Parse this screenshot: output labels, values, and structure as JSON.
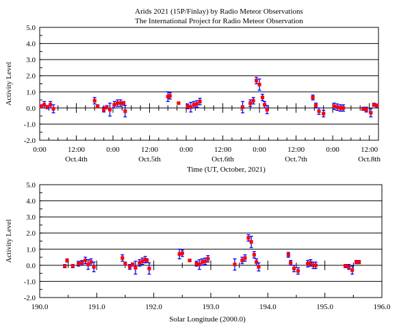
{
  "header": {
    "title_line1": "Arids 2021 (15P/Finlay) by Radio  Meteor Observations",
    "title_line2": "The International Project for Radio  Meteor Observation"
  },
  "colors": {
    "marker": "#ff0000",
    "errorbar": "#0000ff",
    "axis": "#000000"
  },
  "chart_data": [
    {
      "type": "scatter",
      "ylabel": "Activity Level",
      "xlabel": "Time (UT, October, 2021)",
      "grid": "horizontal major lines at integer y values",
      "xlim": [
        0,
        111
      ],
      "ylim": [
        -2,
        5
      ],
      "yticks": [
        -2,
        -1,
        0,
        1,
        2,
        3,
        4,
        5
      ],
      "ytick_labels": [
        "-2.0",
        "-1.0",
        "0.0",
        "1.0",
        "2.0",
        "3.0",
        "4.0",
        "5.0"
      ],
      "xtick_positions": [
        0,
        12,
        24,
        36,
        48,
        60,
        72,
        84,
        96,
        108
      ],
      "xtick_labels": [
        "0:00",
        "12:00",
        "0:00",
        "12:00",
        "0:00",
        "12:00",
        "0:00",
        "12:00",
        "0:00",
        "12:00"
      ],
      "day_labels": [
        {
          "x": 12,
          "text": "Oct.4th"
        },
        {
          "x": 36,
          "text": "Oct.5th"
        },
        {
          "x": 60,
          "text": "Oct.6th"
        },
        {
          "x": 84,
          "text": "Oct.7th"
        },
        {
          "x": 108,
          "text": "Oct.8th"
        }
      ],
      "points": [
        {
          "x": 0.5,
          "y": 0.1,
          "err": 0.1
        },
        {
          "x": 1.5,
          "y": 0.2,
          "err": 0.2
        },
        {
          "x": 2.5,
          "y": 0.05,
          "err": 0.1
        },
        {
          "x": 3.5,
          "y": 0.2,
          "err": 0.2
        },
        {
          "x": 4.5,
          "y": -0.05,
          "err": 0.25
        },
        {
          "x": 18,
          "y": 0.45,
          "err": 0.2
        },
        {
          "x": 19,
          "y": 0.1,
          "err": 0.1
        },
        {
          "x": 21,
          "y": -0.1,
          "err": 0.15
        },
        {
          "x": 22,
          "y": 0.05,
          "err": 0.1
        },
        {
          "x": 23,
          "y": -0.1,
          "err": 0.4
        },
        {
          "x": 24.5,
          "y": 0.2,
          "err": 0.2
        },
        {
          "x": 25.5,
          "y": 0.3,
          "err": 0.2
        },
        {
          "x": 26.5,
          "y": 0.3,
          "err": 0.2
        },
        {
          "x": 27.5,
          "y": 0.3,
          "err": 0.1
        },
        {
          "x": 28,
          "y": -0.2,
          "err": 0.35
        },
        {
          "x": 42,
          "y": 0.7,
          "err": 0.3
        },
        {
          "x": 42.7,
          "y": 0.75,
          "err": 0.2
        },
        {
          "x": 45.5,
          "y": 0.3,
          "err": 0.05
        },
        {
          "x": 48.5,
          "y": 0.1,
          "err": 0.15
        },
        {
          "x": 49.5,
          "y": 0.05,
          "err": 0.3
        },
        {
          "x": 50.5,
          "y": 0.2,
          "err": 0.2
        },
        {
          "x": 51.5,
          "y": 0.25,
          "err": 0.2
        },
        {
          "x": 52.5,
          "y": 0.4,
          "err": 0.2
        },
        {
          "x": 66.5,
          "y": 0.05,
          "err": 0.35
        },
        {
          "x": 69,
          "y": 0.3,
          "err": 0.2
        },
        {
          "x": 70,
          "y": 0.45,
          "err": 0.2
        },
        {
          "x": 71,
          "y": 1.7,
          "err": 0.2
        },
        {
          "x": 72,
          "y": 1.45,
          "err": 0.35
        },
        {
          "x": 73,
          "y": 0.65,
          "err": 0.2
        },
        {
          "x": 73.7,
          "y": 0.2,
          "err": 0.2
        },
        {
          "x": 74.5,
          "y": -0.1,
          "err": 0.25
        },
        {
          "x": 89.5,
          "y": 0.65,
          "err": 0.15
        },
        {
          "x": 90.5,
          "y": 0.15,
          "err": 0.15
        },
        {
          "x": 91.5,
          "y": -0.2,
          "err": 0.2
        },
        {
          "x": 93,
          "y": -0.35,
          "err": 0.2
        },
        {
          "x": 96.5,
          "y": 0.1,
          "err": 0.2
        },
        {
          "x": 97.5,
          "y": 0.05,
          "err": 0.2
        },
        {
          "x": 98.5,
          "y": 0.0,
          "err": 0.2
        },
        {
          "x": 99.5,
          "y": 0.0,
          "err": 0.2
        },
        {
          "x": 106,
          "y": -0.05,
          "err": 0.1
        },
        {
          "x": 107,
          "y": -0.1,
          "err": 0.15
        },
        {
          "x": 108.5,
          "y": -0.3,
          "err": 0.25
        },
        {
          "x": 109.5,
          "y": 0.2,
          "err": 0.1
        },
        {
          "x": 110.5,
          "y": 0.15,
          "err": 0.1
        }
      ]
    },
    {
      "type": "scatter",
      "ylabel": "Activity Level",
      "xlabel": "Solar Longitude (2000.0)",
      "grid": "horizontal major lines at integer y values",
      "xlim": [
        190.0,
        196.0
      ],
      "ylim": [
        -2,
        5
      ],
      "yticks": [
        -2,
        -1,
        0,
        1,
        2,
        3,
        4,
        5
      ],
      "ytick_labels": [
        "-2.0",
        "-1.0",
        "0.0",
        "1.0",
        "2.0",
        "3.0",
        "4.0",
        "5.0"
      ],
      "xticks": [
        190,
        191,
        192,
        193,
        194,
        195,
        196
      ],
      "xtick_labels": [
        "190.0",
        "191.0",
        "192.0",
        "193.0",
        "194.0",
        "195.0",
        "196.0"
      ],
      "points": [
        {
          "x": 190.44,
          "y": -0.05,
          "err": 0.1
        },
        {
          "x": 190.48,
          "y": 0.3,
          "err": 0.1
        },
        {
          "x": 190.58,
          "y": -0.05,
          "err": 0.1
        },
        {
          "x": 190.68,
          "y": 0.1,
          "err": 0.15
        },
        {
          "x": 190.74,
          "y": 0.15,
          "err": 0.15
        },
        {
          "x": 190.8,
          "y": 0.3,
          "err": 0.2
        },
        {
          "x": 190.85,
          "y": 0.05,
          "err": 0.3
        },
        {
          "x": 190.9,
          "y": 0.2,
          "err": 0.2
        },
        {
          "x": 190.95,
          "y": -0.1,
          "err": 0.3
        },
        {
          "x": 191.45,
          "y": 0.45,
          "err": 0.2
        },
        {
          "x": 191.5,
          "y": 0.1,
          "err": 0.1
        },
        {
          "x": 191.58,
          "y": -0.1,
          "err": 0.15
        },
        {
          "x": 191.63,
          "y": 0.05,
          "err": 0.1
        },
        {
          "x": 191.68,
          "y": -0.15,
          "err": 0.4
        },
        {
          "x": 191.75,
          "y": 0.15,
          "err": 0.2
        },
        {
          "x": 191.8,
          "y": 0.25,
          "err": 0.2
        },
        {
          "x": 191.85,
          "y": 0.35,
          "err": 0.2
        },
        {
          "x": 191.88,
          "y": 0.3,
          "err": 0.1
        },
        {
          "x": 191.92,
          "y": -0.2,
          "err": 0.35
        },
        {
          "x": 192.45,
          "y": 0.7,
          "err": 0.3
        },
        {
          "x": 192.5,
          "y": 0.75,
          "err": 0.2
        },
        {
          "x": 192.63,
          "y": 0.3,
          "err": 0.05
        },
        {
          "x": 192.75,
          "y": 0.1,
          "err": 0.15
        },
        {
          "x": 192.8,
          "y": 0.05,
          "err": 0.3
        },
        {
          "x": 192.85,
          "y": 0.2,
          "err": 0.2
        },
        {
          "x": 192.9,
          "y": 0.25,
          "err": 0.2
        },
        {
          "x": 192.95,
          "y": 0.4,
          "err": 0.2
        },
        {
          "x": 193.42,
          "y": 0.05,
          "err": 0.35
        },
        {
          "x": 193.55,
          "y": 0.3,
          "err": 0.2
        },
        {
          "x": 193.6,
          "y": 0.45,
          "err": 0.2
        },
        {
          "x": 193.66,
          "y": 1.7,
          "err": 0.2
        },
        {
          "x": 193.71,
          "y": 1.45,
          "err": 0.35
        },
        {
          "x": 193.76,
          "y": 0.65,
          "err": 0.2
        },
        {
          "x": 193.8,
          "y": 0.2,
          "err": 0.2
        },
        {
          "x": 193.84,
          "y": -0.1,
          "err": 0.25
        },
        {
          "x": 194.36,
          "y": 0.65,
          "err": 0.15
        },
        {
          "x": 194.4,
          "y": 0.15,
          "err": 0.15
        },
        {
          "x": 194.46,
          "y": -0.2,
          "err": 0.2
        },
        {
          "x": 194.53,
          "y": -0.35,
          "err": 0.2
        },
        {
          "x": 194.7,
          "y": 0.1,
          "err": 0.2
        },
        {
          "x": 194.75,
          "y": 0.15,
          "err": 0.2
        },
        {
          "x": 194.8,
          "y": 0.0,
          "err": 0.2
        },
        {
          "x": 194.84,
          "y": 0.0,
          "err": 0.2
        },
        {
          "x": 195.36,
          "y": -0.05,
          "err": 0.1
        },
        {
          "x": 195.42,
          "y": -0.1,
          "err": 0.15
        },
        {
          "x": 195.48,
          "y": -0.3,
          "err": 0.25
        },
        {
          "x": 195.55,
          "y": 0.2,
          "err": 0.1
        },
        {
          "x": 195.6,
          "y": 0.2,
          "err": 0.1
        }
      ]
    }
  ]
}
